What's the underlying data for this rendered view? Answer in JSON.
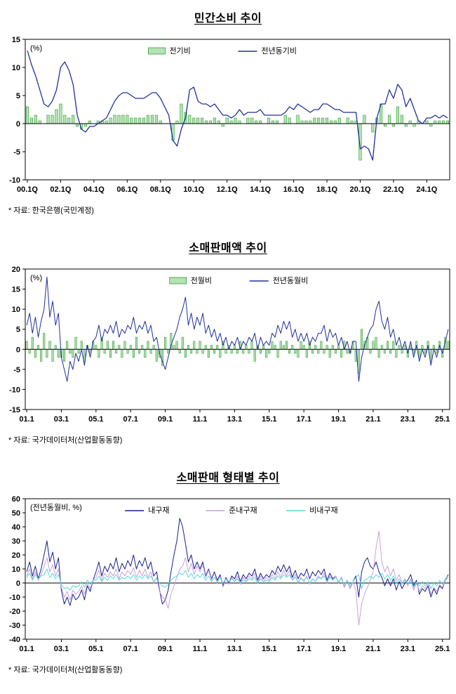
{
  "chart_data": [
    {
      "type": "bar",
      "title": "민간소비 추이",
      "unit_label": "(%)",
      "source_note": "* 자료: 한국은행(국민계정)",
      "ylim": [
        -10,
        15
      ],
      "ytick_step": 5,
      "legend": [
        {
          "label": "전기비",
          "type": "bar"
        },
        {
          "label": "전년동기비",
          "type": "line"
        }
      ],
      "x_ticks": [
        {
          "i": 0,
          "label": "00.1Q"
        },
        {
          "i": 8,
          "label": "02.1Q"
        },
        {
          "i": 16,
          "label": "04.1Q"
        },
        {
          "i": 24,
          "label": "06.1Q"
        },
        {
          "i": 32,
          "label": "08.1Q"
        },
        {
          "i": 40,
          "label": "10.1Q"
        },
        {
          "i": 48,
          "label": "12.1Q"
        },
        {
          "i": 56,
          "label": "14.1Q"
        },
        {
          "i": 64,
          "label": "16.1Q"
        },
        {
          "i": 72,
          "label": "18.1Q"
        },
        {
          "i": 80,
          "label": "20.1Q"
        },
        {
          "i": 88,
          "label": "22.1Q"
        },
        {
          "i": 96,
          "label": "24.1Q"
        }
      ],
      "bar_series": {
        "name": "전기비",
        "fill": "#b5e2b5",
        "stroke": "#2f9e2f",
        "values": [
          3.0,
          1.0,
          1.5,
          0.5,
          0.0,
          1.5,
          1.5,
          2.5,
          3.5,
          1.5,
          1.0,
          1.5,
          -0.5,
          -1.0,
          -0.5,
          0.5,
          0.0,
          0.5,
          0.5,
          0.5,
          1.0,
          1.5,
          1.5,
          1.5,
          1.5,
          1.0,
          1.0,
          1.0,
          1.0,
          1.5,
          1.5,
          1.5,
          0.5,
          0.0,
          0.0,
          -3.0,
          0.5,
          3.5,
          2.0,
          1.5,
          1.0,
          1.0,
          1.0,
          0.5,
          0.5,
          1.0,
          0.5,
          -0.5,
          1.0,
          0.5,
          1.0,
          0.5,
          0.0,
          1.0,
          1.0,
          0.5,
          0.5,
          0.0,
          1.0,
          0.5,
          0.5,
          0.0,
          1.5,
          1.0,
          0.0,
          1.5,
          0.5,
          0.5,
          0.5,
          1.0,
          1.0,
          1.0,
          1.0,
          0.5,
          0.5,
          1.0,
          0.0,
          1.0,
          0.5,
          0.5,
          -6.5,
          1.5,
          0.0,
          -1.5,
          1.0,
          3.5,
          -0.5,
          1.5,
          -0.5,
          3.0,
          1.5,
          -0.5,
          0.5,
          -0.5,
          0.5,
          0.0,
          0.5,
          -0.5,
          0.5,
          0.5,
          0.5,
          0.5
        ]
      },
      "line_series": [
        {
          "name": "전년동기비",
          "color": "#202f9e",
          "values": [
            13.0,
            10.5,
            8.5,
            6.0,
            3.5,
            3.0,
            4.0,
            6.0,
            10.0,
            11.0,
            9.5,
            7.0,
            1.5,
            -1.0,
            -1.5,
            -0.5,
            -0.5,
            0.0,
            0.5,
            1.0,
            2.5,
            4.0,
            5.0,
            5.5,
            5.5,
            5.0,
            4.5,
            4.5,
            4.5,
            5.0,
            5.5,
            5.5,
            4.5,
            3.0,
            1.5,
            -3.0,
            -4.0,
            -1.0,
            1.0,
            6.0,
            6.5,
            4.0,
            3.5,
            3.5,
            3.0,
            3.5,
            2.5,
            1.5,
            1.5,
            1.0,
            1.5,
            2.5,
            1.5,
            2.0,
            2.0,
            2.0,
            2.5,
            1.5,
            1.5,
            1.5,
            1.5,
            1.5,
            2.0,
            3.0,
            2.5,
            3.5,
            3.0,
            2.5,
            2.0,
            2.5,
            2.5,
            3.5,
            3.5,
            3.0,
            2.5,
            2.5,
            2.0,
            2.0,
            2.0,
            2.0,
            -4.5,
            -4.0,
            -4.5,
            -6.5,
            1.0,
            3.5,
            3.5,
            6.0,
            4.5,
            7.0,
            6.0,
            3.0,
            4.5,
            2.5,
            0.5,
            0.0,
            1.0,
            1.0,
            1.5,
            1.0,
            1.5,
            1.0
          ]
        }
      ]
    },
    {
      "type": "bar",
      "title": "소매판매액 추이",
      "unit_label": "(%)",
      "source_note": "* 자료: 국가데이터처(산업활동동향)",
      "ylim": [
        -15,
        20
      ],
      "ytick_step": 5,
      "legend": [
        {
          "label": "전월비",
          "type": "bar"
        },
        {
          "label": "전년동월비",
          "type": "line"
        }
      ],
      "x_ticks": [
        {
          "i": 0,
          "label": "01.1"
        },
        {
          "i": 12,
          "label": "03.1"
        },
        {
          "i": 24,
          "label": "05.1"
        },
        {
          "i": 36,
          "label": "07.1"
        },
        {
          "i": 48,
          "label": "09.1"
        },
        {
          "i": 60,
          "label": "11.1"
        },
        {
          "i": 72,
          "label": "13.1"
        },
        {
          "i": 84,
          "label": "15.1"
        },
        {
          "i": 96,
          "label": "17.1"
        },
        {
          "i": 108,
          "label": "19.1"
        },
        {
          "i": 120,
          "label": "21.1"
        },
        {
          "i": 132,
          "label": "23.1"
        },
        {
          "i": 144,
          "label": "25.1"
        }
      ],
      "bar_series": {
        "name": "전월비",
        "fill": "#b5e2b5",
        "stroke": "#2f9e2f",
        "values": [
          2,
          -1,
          3,
          -2,
          1,
          -3,
          4,
          -2,
          2,
          -3,
          1,
          -2,
          -2,
          -3,
          2,
          -1,
          -2,
          3,
          -1,
          2,
          -3,
          1,
          -1,
          2,
          1,
          -2,
          3,
          -1,
          2,
          -2,
          2,
          -1,
          1,
          -2,
          2,
          -1,
          1,
          -2,
          3,
          -1,
          1,
          -2,
          2,
          -1,
          1,
          -3,
          -2,
          -4,
          3,
          -1,
          4,
          1,
          2,
          -1,
          3,
          -2,
          1,
          -1,
          2,
          -1,
          2,
          -1,
          1,
          -2,
          1,
          -1,
          1,
          -2,
          2,
          -1,
          1,
          -1,
          1,
          -1,
          2,
          -1,
          1,
          -1,
          2,
          -3,
          1,
          -1,
          1,
          -2,
          -1,
          2,
          1,
          -2,
          2,
          1,
          2,
          -1,
          1,
          -1,
          -2,
          2,
          1,
          -2,
          2,
          -1,
          1,
          -1,
          2,
          -1,
          1,
          -2,
          1,
          -1,
          1,
          -2,
          2,
          -1,
          -1,
          2,
          -3,
          -6,
          5,
          2,
          3,
          -1,
          2,
          3,
          -2,
          1,
          -1,
          2,
          -1,
          2,
          -2,
          1,
          -1,
          1,
          -2,
          1,
          -1,
          2,
          -2,
          1,
          -1,
          2,
          -3,
          1,
          -1,
          2,
          -2,
          3,
          2
        ]
      },
      "line_series": [
        {
          "name": "전년동월비",
          "color": "#202f9e",
          "values": [
            6,
            9,
            4,
            8,
            3,
            7,
            10,
            18,
            8,
            12,
            6,
            9,
            -2,
            -5,
            -8,
            -3,
            -5,
            -1,
            -3,
            0,
            -4,
            1,
            -2,
            2,
            3,
            6,
            2,
            5,
            4,
            6,
            4,
            7,
            3,
            5,
            4,
            6,
            5,
            8,
            4,
            6,
            5,
            7,
            4,
            6,
            2,
            3,
            -1,
            -3,
            -5,
            -2,
            1,
            3,
            5,
            8,
            10,
            13,
            6,
            9,
            5,
            8,
            6,
            9,
            4,
            6,
            3,
            5,
            2,
            4,
            1,
            3,
            0,
            2,
            1,
            3,
            0,
            2,
            1,
            3,
            2,
            4,
            0,
            3,
            1,
            2,
            1,
            4,
            3,
            6,
            4,
            7,
            5,
            7,
            3,
            5,
            2,
            4,
            2,
            4,
            1,
            3,
            2,
            4,
            4,
            6,
            2,
            5,
            3,
            4,
            1,
            3,
            0,
            2,
            -1,
            2,
            2,
            -8,
            -2,
            1,
            3,
            5,
            6,
            10,
            12,
            7,
            5,
            8,
            3,
            5,
            1,
            3,
            0,
            2,
            -1,
            2,
            -2,
            1,
            -3,
            0,
            -2,
            1,
            -4,
            0,
            -2,
            1,
            -1,
            2,
            5
          ]
        }
      ]
    },
    {
      "type": "line",
      "title": "소매판매 형태별 추이",
      "unit_label": "(전년동월비, %)",
      "source_note": "* 자료: 국가데이터처(산업활동동향)",
      "ylim": [
        -40,
        60
      ],
      "ytick_step": 10,
      "legend": [
        {
          "label": "내구재",
          "type": "line"
        },
        {
          "label": "준내구재",
          "type": "line"
        },
        {
          "label": "비내구재",
          "type": "line"
        }
      ],
      "x_ticks": [
        {
          "i": 0,
          "label": "01.1"
        },
        {
          "i": 12,
          "label": "03.1"
        },
        {
          "i": 24,
          "label": "05.1"
        },
        {
          "i": 36,
          "label": "07.1"
        },
        {
          "i": 48,
          "label": "09.1"
        },
        {
          "i": 60,
          "label": "11.1"
        },
        {
          "i": 72,
          "label": "13.1"
        },
        {
          "i": 84,
          "label": "15.1"
        },
        {
          "i": 96,
          "label": "17.1"
        },
        {
          "i": 108,
          "label": "19.1"
        },
        {
          "i": 120,
          "label": "21.1"
        },
        {
          "i": 132,
          "label": "23.1"
        },
        {
          "i": 144,
          "label": "25.1"
        }
      ],
      "line_series": [
        {
          "name": "내구재",
          "color": "#181f8f",
          "values": [
            8,
            15,
            5,
            12,
            3,
            10,
            20,
            30,
            15,
            22,
            10,
            18,
            -5,
            -15,
            -10,
            -16,
            -8,
            -12,
            -10,
            -5,
            -12,
            -2,
            -6,
            2,
            8,
            15,
            5,
            12,
            8,
            14,
            10,
            18,
            8,
            14,
            10,
            16,
            12,
            20,
            10,
            16,
            12,
            18,
            10,
            15,
            5,
            8,
            -5,
            -15,
            -12,
            -5,
            8,
            20,
            30,
            46,
            40,
            28,
            15,
            20,
            10,
            15,
            10,
            15,
            5,
            10,
            3,
            8,
            2,
            6,
            -2,
            4,
            0,
            5,
            3,
            8,
            1,
            6,
            3,
            7,
            5,
            10,
            2,
            7,
            3,
            6,
            4,
            9,
            6,
            12,
            8,
            13,
            8,
            12,
            4,
            9,
            3,
            7,
            5,
            10,
            3,
            8,
            5,
            9,
            6,
            10,
            2,
            7,
            3,
            5,
            0,
            4,
            -3,
            2,
            -4,
            1,
            5,
            -10,
            8,
            15,
            18,
            12,
            10,
            15,
            8,
            4,
            -2,
            3,
            -2,
            3,
            -5,
            1,
            -4,
            0,
            2,
            6,
            -2,
            2,
            -8,
            -4,
            -6,
            -2,
            -10,
            -4,
            -8,
            -2,
            -4,
            2,
            6
          ]
        },
        {
          "name": "준내구재",
          "color": "#c9a0dc",
          "values": [
            5,
            10,
            3,
            8,
            2,
            6,
            12,
            18,
            8,
            13,
            5,
            10,
            -3,
            -10,
            -6,
            -12,
            -5,
            -8,
            -6,
            -2,
            -8,
            0,
            -4,
            2,
            4,
            9,
            2,
            7,
            4,
            8,
            5,
            10,
            3,
            8,
            5,
            9,
            6,
            11,
            4,
            9,
            5,
            10,
            4,
            8,
            0,
            4,
            -6,
            -10,
            -12,
            -18,
            -8,
            -2,
            4,
            10,
            12,
            18,
            8,
            14,
            6,
            12,
            8,
            13,
            4,
            9,
            2,
            7,
            0,
            5,
            -3,
            3,
            -1,
            4,
            1,
            5,
            -1,
            4,
            1,
            5,
            3,
            7,
            0,
            5,
            1,
            4,
            2,
            6,
            3,
            8,
            4,
            9,
            5,
            9,
            2,
            6,
            0,
            4,
            1,
            5,
            -1,
            3,
            1,
            5,
            3,
            7,
            0,
            5,
            2,
            5,
            0,
            4,
            -3,
            2,
            -4,
            1,
            -5,
            -30,
            -15,
            -8,
            -3,
            2,
            8,
            25,
            37,
            15,
            8,
            12,
            5,
            10,
            2,
            6,
            0,
            3,
            -2,
            3,
            -5,
            0,
            -6,
            -2,
            -4,
            0,
            -8,
            -3,
            -6,
            -1,
            -3,
            2,
            4
          ]
        },
        {
          "name": "비내구재",
          "color": "#55dcdc",
          "values": [
            4,
            7,
            2,
            6,
            3,
            5,
            6,
            10,
            4,
            7,
            3,
            6,
            -1,
            -4,
            -3,
            -5,
            -2,
            -3,
            -2,
            1,
            -3,
            2,
            -1,
            2,
            2,
            5,
            1,
            4,
            2,
            5,
            3,
            6,
            2,
            4,
            3,
            5,
            3,
            6,
            2,
            5,
            3,
            6,
            3,
            5,
            1,
            3,
            0,
            -2,
            -3,
            -1,
            2,
            4,
            5,
            7,
            6,
            9,
            4,
            7,
            3,
            6,
            4,
            7,
            2,
            5,
            1,
            4,
            1,
            4,
            0,
            3,
            1,
            3,
            1,
            3,
            0,
            2,
            1,
            3,
            2,
            4,
            0,
            3,
            1,
            2,
            1,
            4,
            2,
            5,
            3,
            6,
            4,
            6,
            2,
            4,
            1,
            3,
            2,
            4,
            0,
            3,
            1,
            4,
            3,
            5,
            1,
            4,
            2,
            4,
            1,
            3,
            -1,
            2,
            -2,
            1,
            4,
            6,
            -4,
            2,
            3,
            5,
            3,
            6,
            4,
            7,
            3,
            6,
            2,
            5,
            0,
            3,
            -1,
            2,
            -1,
            2,
            -3,
            1,
            -2,
            1,
            -2,
            1,
            -4,
            0,
            -2,
            2,
            -1,
            3,
            5
          ]
        }
      ]
    }
  ]
}
